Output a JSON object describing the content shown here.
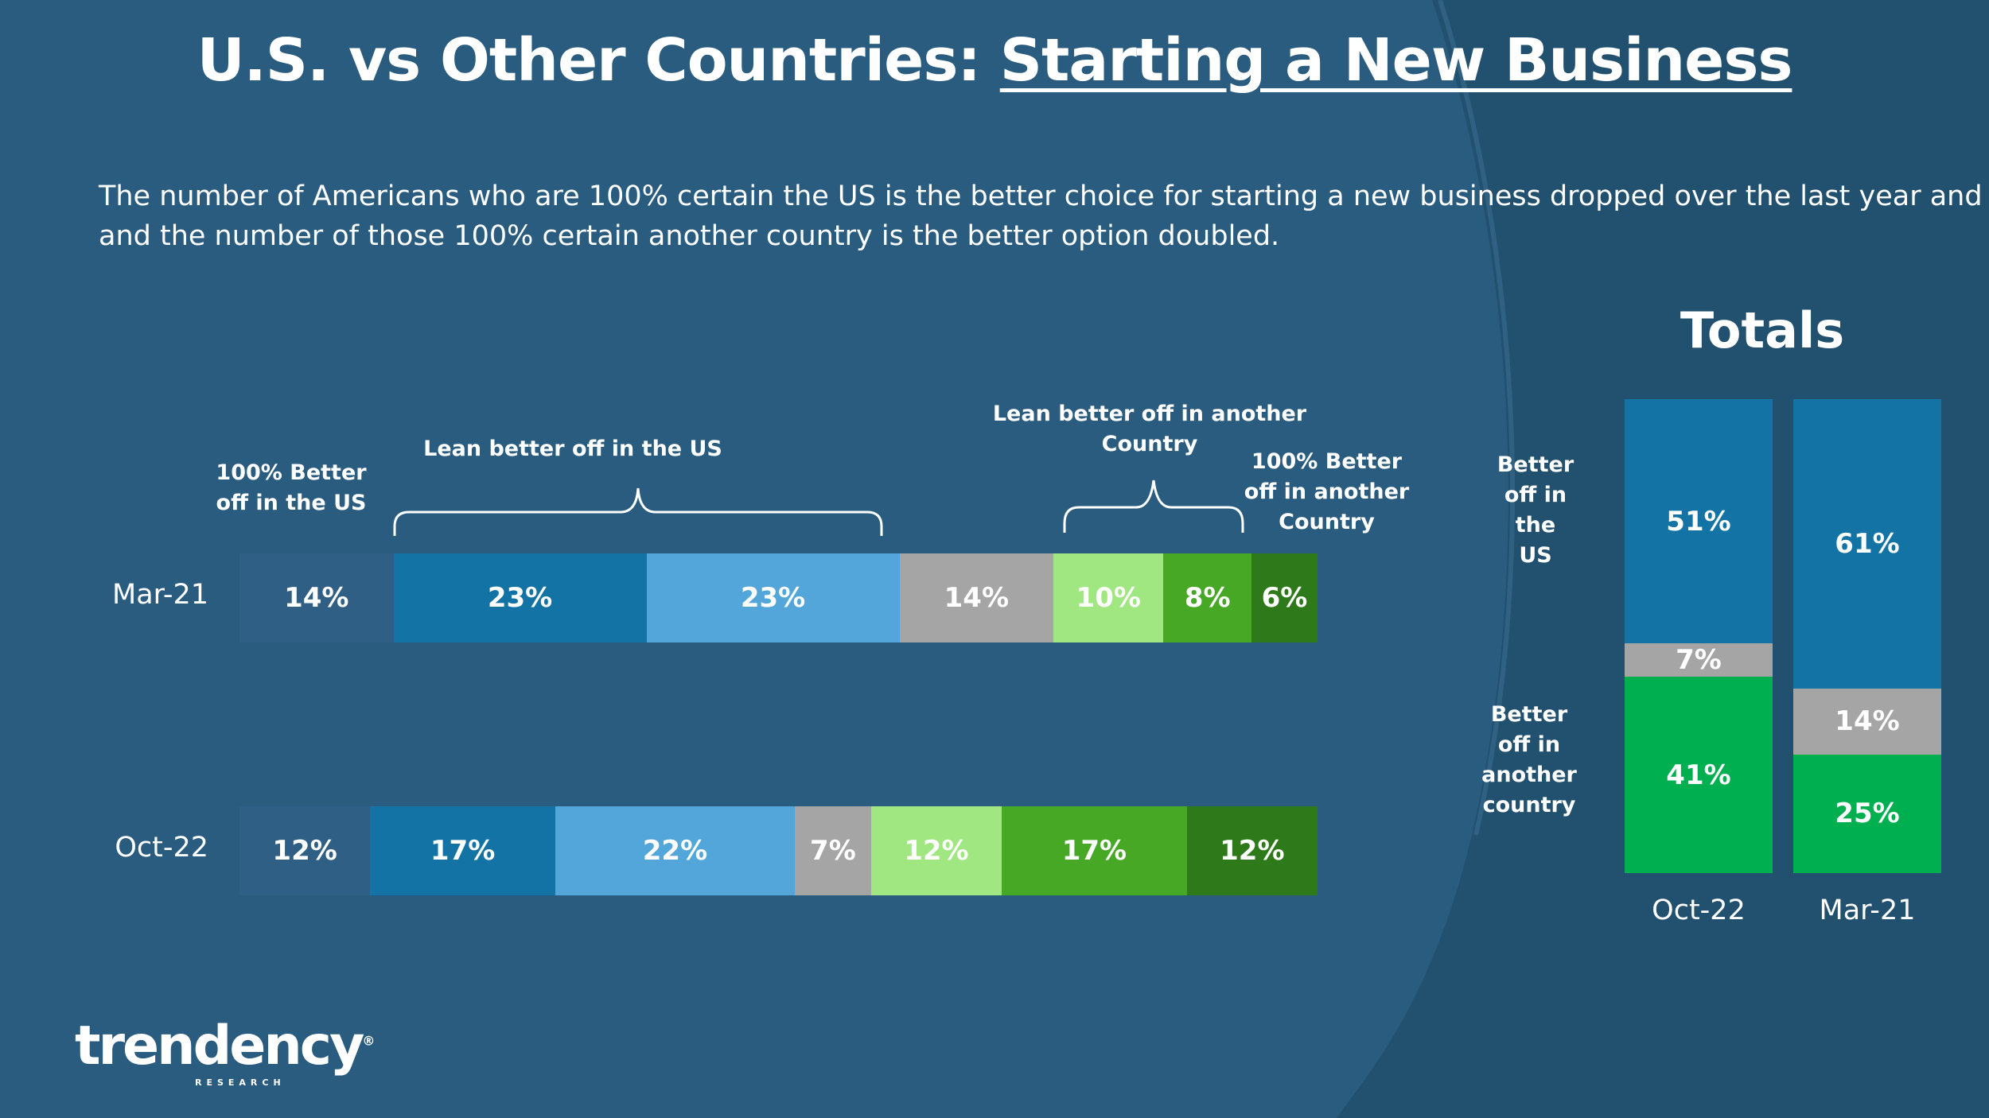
{
  "header": {
    "title_prefix": "U.S. vs Other Countries: ",
    "title_underlined": "Starting a New Business",
    "subtitle_line1": "The number of Americans who are 100% certain the US is the better choice for starting a new business dropped over the last year and a half",
    "subtitle_line2": "and the number of those 100% certain another country is the better option doubled."
  },
  "annotations": {
    "us_certain": [
      "100% Better",
      "off in the US"
    ],
    "us_lean": "Lean better off in the US",
    "other_lean": [
      "Lean better off in another",
      "Country"
    ],
    "other_certain": [
      "100% Better",
      "off in another",
      "Country"
    ]
  },
  "colors": {
    "background": "#2a5c80",
    "us_100": "#2f5f84",
    "us_lean_dark": "#1473a5",
    "us_lean_light": "#52a6d9",
    "neutral": "#a5a5a5",
    "other_lean_light": "#a0e681",
    "other_lean_mid": "#46a825",
    "other_100": "#2e7a1b",
    "totals_us": "#1473a5",
    "totals_neutral": "#a5a5a5",
    "totals_other": "#00b050"
  },
  "chart_data": [
    {
      "type": "bar",
      "orientation": "horizontal-stacked",
      "categories": [
        "Mar-21",
        "Oct-22"
      ],
      "series": [
        {
          "name": "100% Better off in the US",
          "values": [
            14,
            12
          ],
          "labels": [
            "14%",
            "12%"
          ]
        },
        {
          "name": "",
          "values": [
            23,
            17
          ],
          "labels": [
            "23%",
            "17%"
          ]
        },
        {
          "name": "",
          "values": [
            23,
            22
          ],
          "labels": [
            "23%",
            "22%"
          ]
        },
        {
          "name": "",
          "values": [
            14,
            7
          ],
          "labels": [
            "14%",
            "7%"
          ]
        },
        {
          "name": "",
          "values": [
            10,
            12
          ],
          "labels": [
            "10%",
            "12%"
          ]
        },
        {
          "name": "",
          "values": [
            8,
            17
          ],
          "labels": [
            "8%",
            "17%"
          ]
        },
        {
          "name": "100% Better off in another Country",
          "values": [
            6,
            12
          ],
          "labels": [
            "6%",
            "12%"
          ]
        }
      ]
    },
    {
      "type": "bar",
      "orientation": "vertical-stacked",
      "title": "Totals",
      "categories": [
        "Oct-22",
        "Mar-21"
      ],
      "series": [
        {
          "name": "Better off in the US",
          "values": [
            51,
            61
          ],
          "labels": [
            "51%",
            "61%"
          ]
        },
        {
          "name": "",
          "values": [
            7,
            14
          ],
          "labels": [
            "7%",
            "14%"
          ]
        },
        {
          "name": "Better off in another country",
          "values": [
            41,
            25
          ],
          "labels": [
            "41%",
            "25%"
          ]
        }
      ],
      "side_labels": {
        "us": [
          "Better",
          "off in",
          "the",
          "US"
        ],
        "other": [
          "Better",
          "off in",
          "another",
          "country"
        ]
      }
    }
  ],
  "logo": {
    "name": "trendency",
    "sub": "RESEARCH",
    "registered": "®"
  }
}
